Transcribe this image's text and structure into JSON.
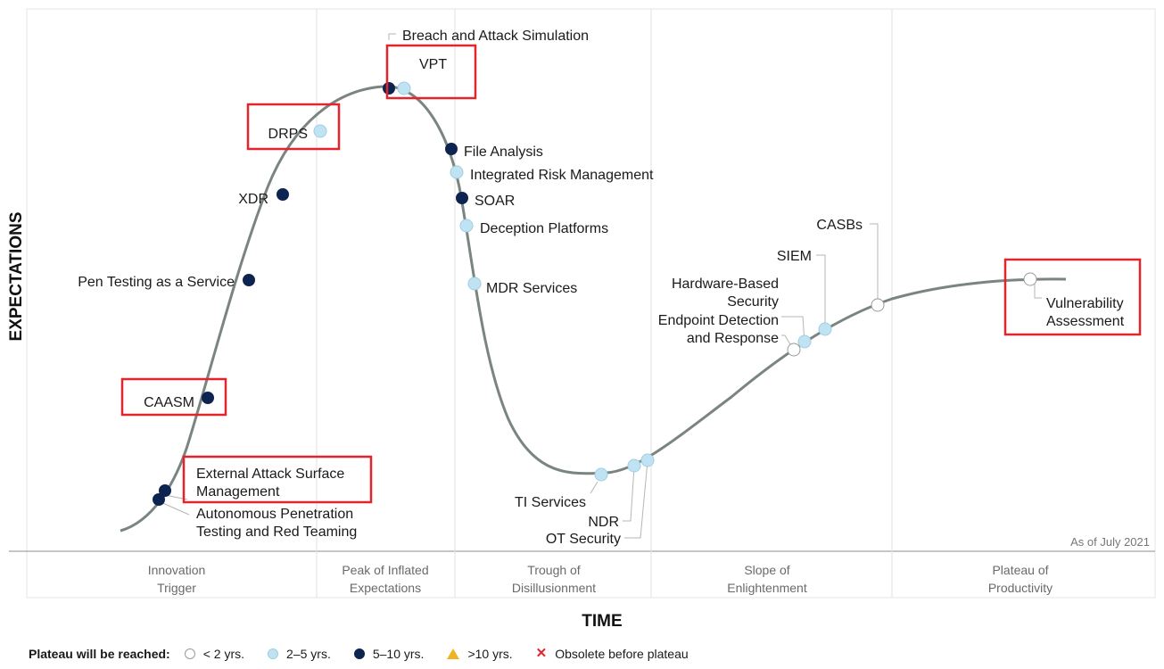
{
  "axes": {
    "y_label": "EXPECTATIONS",
    "x_label": "TIME"
  },
  "as_of": "As of July 2021",
  "phases": [
    {
      "line1": "Innovation",
      "line2": "Trigger"
    },
    {
      "line1": "Peak of Inflated",
      "line2": "Expectations"
    },
    {
      "line1": "Trough of",
      "line2": "Disillusionment"
    },
    {
      "line1": "Slope of",
      "line2": "Enlightenment"
    },
    {
      "line1": "Plateau of",
      "line2": "Productivity"
    }
  ],
  "technologies": [
    {
      "name": "Autonomous Penetration Testing and Red Teaming",
      "lines": [
        "Autonomous Penetration",
        "Testing and Red Teaming"
      ],
      "plateau": "5-10 yrs",
      "highlighted": false
    },
    {
      "name": "External Attack Surface Management",
      "lines": [
        "External Attack Surface",
        "Management"
      ],
      "plateau": "5-10 yrs",
      "highlighted": true
    },
    {
      "name": "CAASM",
      "lines": [
        "CAASM"
      ],
      "plateau": "5-10 yrs",
      "highlighted": true
    },
    {
      "name": "Pen Testing as a Service",
      "lines": [
        "Pen Testing as a Service"
      ],
      "plateau": "5-10 yrs",
      "highlighted": false
    },
    {
      "name": "XDR",
      "lines": [
        "XDR"
      ],
      "plateau": "5-10 yrs",
      "highlighted": false
    },
    {
      "name": "DRPS",
      "lines": [
        "DRPS"
      ],
      "plateau": "2-5 yrs",
      "highlighted": true
    },
    {
      "name": "Breach and Attack Simulation",
      "lines": [
        "Breach and Attack Simulation"
      ],
      "plateau": "5-10 yrs",
      "highlighted": false
    },
    {
      "name": "VPT",
      "lines": [
        "VPT"
      ],
      "plateau": "2-5 yrs",
      "highlighted": true
    },
    {
      "name": "File Analysis",
      "lines": [
        "File Analysis"
      ],
      "plateau": "5-10 yrs",
      "highlighted": false
    },
    {
      "name": "Integrated Risk Management",
      "lines": [
        "Integrated Risk Management"
      ],
      "plateau": "2-5 yrs",
      "highlighted": false
    },
    {
      "name": "SOAR",
      "lines": [
        "SOAR"
      ],
      "plateau": "5-10 yrs",
      "highlighted": false
    },
    {
      "name": "Deception Platforms",
      "lines": [
        "Deception Platforms"
      ],
      "plateau": "2-5 yrs",
      "highlighted": false
    },
    {
      "name": "MDR Services",
      "lines": [
        "MDR Services"
      ],
      "plateau": "2-5 yrs",
      "highlighted": false
    },
    {
      "name": "TI Services",
      "lines": [
        "TI Services"
      ],
      "plateau": "2-5 yrs",
      "highlighted": false
    },
    {
      "name": "NDR",
      "lines": [
        "NDR"
      ],
      "plateau": "2-5 yrs",
      "highlighted": false
    },
    {
      "name": "OT Security",
      "lines": [
        "OT Security"
      ],
      "plateau": "2-5 yrs",
      "highlighted": false
    },
    {
      "name": "Endpoint Detection and Response",
      "lines": [
        "Endpoint Detection",
        "and Response"
      ],
      "plateau": "< 2 yrs",
      "highlighted": false
    },
    {
      "name": "Hardware-Based Security",
      "lines": [
        "Hardware-Based",
        "Security"
      ],
      "plateau": "2-5 yrs",
      "highlighted": false
    },
    {
      "name": "SIEM",
      "lines": [
        "SIEM"
      ],
      "plateau": "2-5 yrs",
      "highlighted": false
    },
    {
      "name": "CASBs",
      "lines": [
        "CASBs"
      ],
      "plateau": "< 2 yrs",
      "highlighted": false
    },
    {
      "name": "Vulnerability Assessment",
      "lines": [
        "Vulnerability",
        "Assessment"
      ],
      "plateau": "< 2 yrs",
      "highlighted": true
    }
  ],
  "legend": {
    "title": "Plateau will be reached:",
    "items": [
      {
        "symbol": "white-circle",
        "label": "< 2 yrs."
      },
      {
        "symbol": "light-blue-circle",
        "label": "2–5 yrs."
      },
      {
        "symbol": "navy-circle",
        "label": "5–10 yrs."
      },
      {
        "symbol": "yellow-triangle",
        "label": ">10 yrs."
      },
      {
        "symbol": "red-x",
        "label": "Obsolete before plateau"
      }
    ]
  },
  "colors": {
    "curve": "#7b8580",
    "navy": "#0d2451",
    "light_blue": "#bfe3f3",
    "white": "#ffffff",
    "highlight": "#e4242b",
    "triangle": "#f0b323"
  }
}
